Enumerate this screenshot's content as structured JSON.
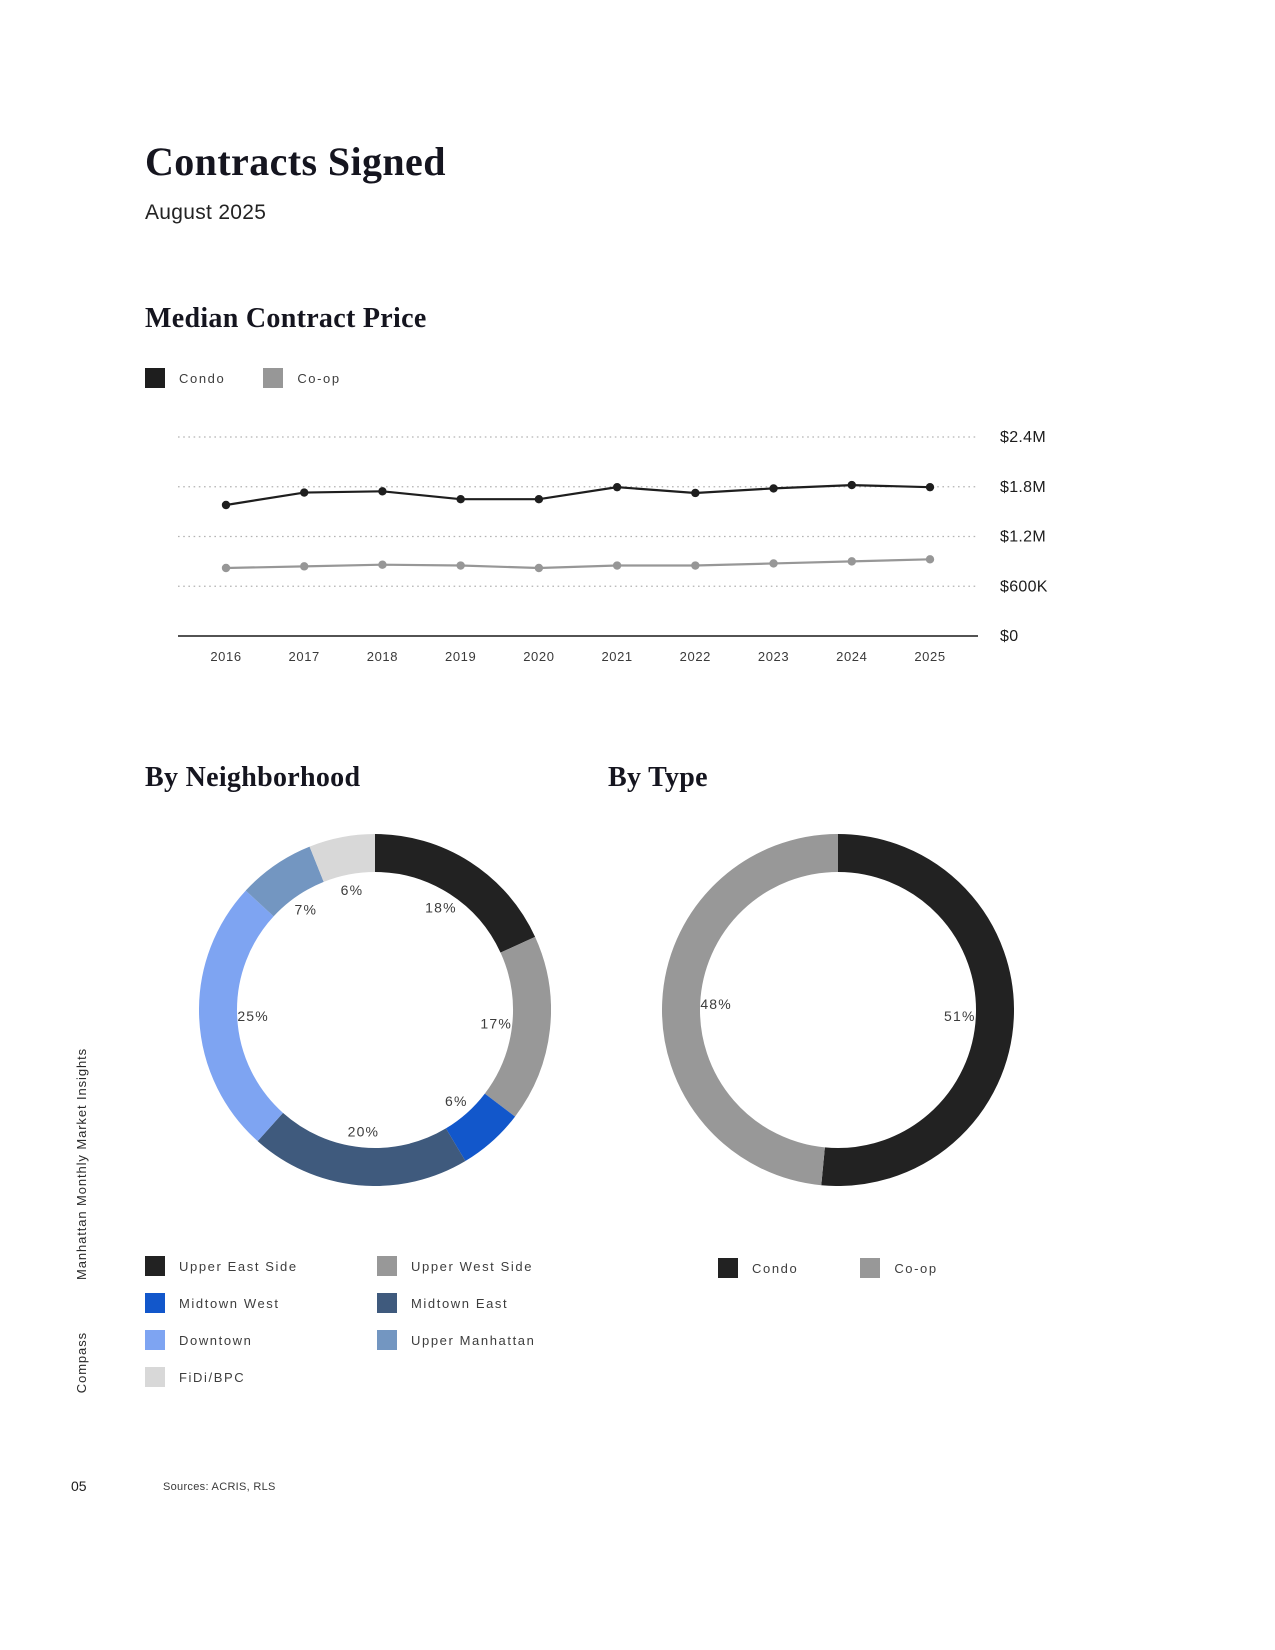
{
  "header": {
    "title": "Contracts Signed",
    "subtitle": "August 2025"
  },
  "side": {
    "report_title": "Manhattan Monthly Market Insights",
    "brand": "Compass"
  },
  "footer": {
    "page_number": "05",
    "sources": "Sources: ACRIS, RLS"
  },
  "chart_data": [
    {
      "type": "line",
      "title": "Median Contract Price",
      "x": [
        "2016",
        "2017",
        "2018",
        "2019",
        "2020",
        "2021",
        "2022",
        "2023",
        "2024",
        "2025"
      ],
      "series": [
        {
          "name": "Condo",
          "color": "#1e1e1e",
          "values": [
            1580000,
            1730000,
            1745000,
            1650000,
            1650000,
            1795000,
            1725000,
            1780000,
            1820000,
            1795000
          ]
        },
        {
          "name": "Co-op",
          "color": "#979797",
          "values": [
            820000,
            840000,
            860000,
            850000,
            820000,
            850000,
            850000,
            875000,
            900000,
            925000
          ]
        }
      ],
      "ylim": [
        0,
        2400000
      ],
      "yticks": [
        {
          "value": 2400000,
          "label": "$2.4M"
        },
        {
          "value": 1800000,
          "label": "$1.8M"
        },
        {
          "value": 1200000,
          "label": "$1.2M"
        },
        {
          "value": 600000,
          "label": "$600K"
        },
        {
          "value": 0,
          "label": "$0"
        }
      ],
      "grid": "dotted horizontal gridlines",
      "legend_position": "top-left"
    },
    {
      "type": "pie",
      "title": "By Neighborhood",
      "donut": true,
      "segments": [
        {
          "label": "Upper East Side",
          "value": 18,
          "display": "18%",
          "color": "#222222"
        },
        {
          "label": "Upper West Side",
          "value": 17,
          "display": "17%",
          "color": "#989898"
        },
        {
          "label": "Midtown West",
          "value": 6,
          "display": "6%",
          "color": "#1257cb"
        },
        {
          "label": "Midtown East",
          "value": 20,
          "display": "20%",
          "color": "#3f5a7d"
        },
        {
          "label": "Downtown",
          "value": 25,
          "display": "25%",
          "color": "#7ea4f2"
        },
        {
          "label": "Upper Manhattan",
          "value": 7,
          "display": "7%",
          "color": "#7396c1"
        },
        {
          "label": "FiDi/BPC",
          "value": 6,
          "display": "6%",
          "color": "#d8d8d8"
        }
      ]
    },
    {
      "type": "pie",
      "title": "By Type",
      "donut": true,
      "segments": [
        {
          "label": "Condo",
          "value": 51,
          "display": "51%",
          "color": "#222222"
        },
        {
          "label": "Co-op",
          "value": 48,
          "display": "48%",
          "color": "#989898"
        }
      ]
    }
  ]
}
